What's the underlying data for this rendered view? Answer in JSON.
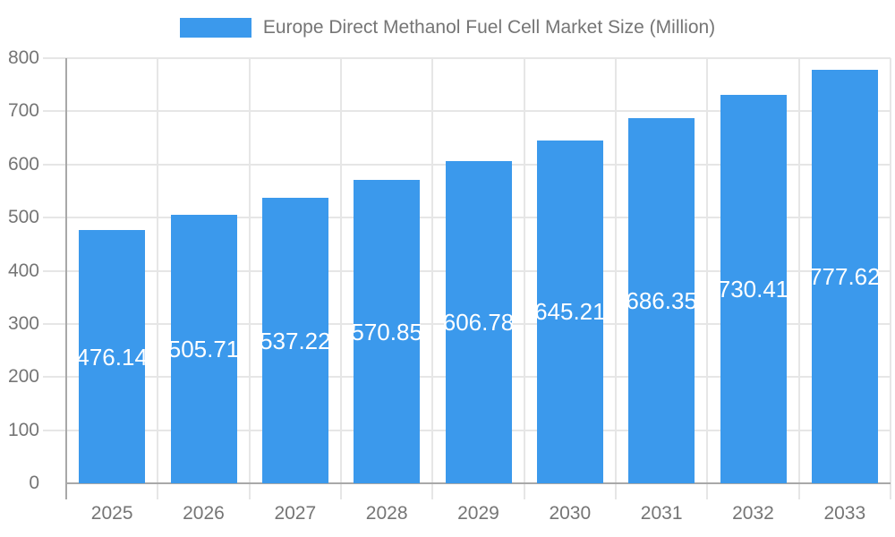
{
  "legend": {
    "label": "Europe Direct Methanol Fuel Cell Market Size (Million)"
  },
  "colors": {
    "bar": "#3b99ec",
    "grid": "#e6e6e6",
    "axis": "#a8a8a8",
    "axis_label": "#757575",
    "value_label": "#ffffff",
    "background": "#ffffff"
  },
  "chart_data": {
    "type": "bar",
    "title": "Europe Direct Methanol Fuel Cell Market Size (Million)",
    "series_name": "Europe Direct Methanol Fuel Cell Market Size (Million)",
    "categories": [
      "2025",
      "2026",
      "2027",
      "2028",
      "2029",
      "2030",
      "2031",
      "2032",
      "2033"
    ],
    "values": [
      476.14,
      505.71,
      537.22,
      570.85,
      606.78,
      645.21,
      686.35,
      730.41,
      777.62
    ],
    "xlabel": "",
    "ylabel": "",
    "ylim": [
      0,
      800
    ],
    "yticks": [
      0,
      100,
      200,
      300,
      400,
      500,
      600,
      700,
      800
    ],
    "grid": true,
    "legend_position": "top",
    "value_label_position": "inside-center"
  }
}
